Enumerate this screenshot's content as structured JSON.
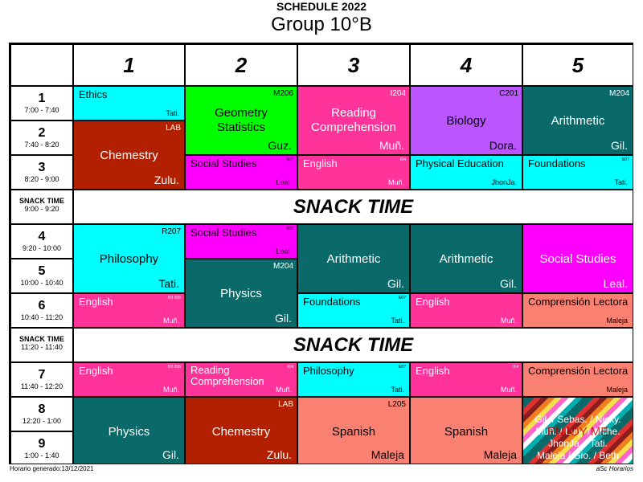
{
  "header": {
    "title": "SCHEDULE 2022",
    "subtitle": "Group 10°B"
  },
  "days": [
    "1",
    "2",
    "3",
    "4",
    "5"
  ],
  "periods": {
    "p1": {
      "num": "1",
      "time": "7:00 - 7:40"
    },
    "p2": {
      "num": "2",
      "time": "7:40 - 8:20"
    },
    "p3": {
      "num": "3",
      "time": "8:20 - 9:00"
    },
    "s1": {
      "label": "SNACK TIME",
      "time": "9:00 - 9:20"
    },
    "p4": {
      "num": "4",
      "time": "9:20 - 10:00"
    },
    "p5": {
      "num": "5",
      "time": "10:00 - 10:40"
    },
    "p6": {
      "num": "6",
      "time": "10:40 - 11:20"
    },
    "s2": {
      "label": "SNACK TIME",
      "time": "11:20 - 11:40"
    },
    "p7": {
      "num": "7",
      "time": "11:40 - 12:20"
    },
    "p8": {
      "num": "8",
      "time": "12:20 - 1:00"
    },
    "p9": {
      "num": "9",
      "time": "1:00 - 1:40"
    }
  },
  "snack_banner": "SNACK TIME",
  "lessons": {
    "d1_ethics": {
      "subject": "Ethics",
      "teacher": "Tati.",
      "color": "#00ffff"
    },
    "d1_chem": {
      "subject": "Chemestry",
      "room": "LAB",
      "teacher": "Zulu.",
      "color": "#b22000"
    },
    "d1_philo": {
      "subject": "Philosophy",
      "room": "R207",
      "teacher": "Tati.",
      "color": "#00ffff"
    },
    "d1_english6": {
      "subject": "English",
      "room": "R3 206",
      "teacher": "Muñ.",
      "color": "#ff3399"
    },
    "d1_english7": {
      "subject": "English",
      "room": "R3 206",
      "teacher": "Muñ.",
      "color": "#ff3399"
    },
    "d1_physics": {
      "subject": "Physics",
      "teacher": "Gil.",
      "color": "#0a6a6a"
    },
    "d2_geo": {
      "subject1": "Geometry",
      "subject2": "Statistics",
      "room": "M206",
      "teacher": "Guz.",
      "color": "#00ff00"
    },
    "d2_social3": {
      "subject": "Social Studies",
      "room": "S07",
      "teacher": "Leal.",
      "color": "#ff00ff"
    },
    "d2_social4": {
      "subject": "Social Studies",
      "room": "S02",
      "teacher": "Leal.",
      "color": "#ff00ff"
    },
    "d2_physics": {
      "subject": "Physics",
      "room": "M204",
      "teacher": "Gil.",
      "color": "#0a6a6a"
    },
    "d2_reading7": {
      "subject1": "Reading",
      "subject2": "Comprehension",
      "room": "I04",
      "teacher": "Muñ.",
      "color": "#ff3399"
    },
    "d2_chem": {
      "subject": "Chemestry",
      "room": "LAB",
      "teacher": "Zulu.",
      "color": "#b22000"
    },
    "d3_reading": {
      "subject1": "Reading",
      "subject2": "Comprehension",
      "room": "I204",
      "teacher": "Muñ.",
      "color": "#ff3399"
    },
    "d3_english3": {
      "subject": "English",
      "room": "I04",
      "teacher": "Muñ.",
      "color": "#ff3399"
    },
    "d3_arith": {
      "subject": "Arithmetic",
      "teacher": "Gil.",
      "color": "#0a6a6a"
    },
    "d3_found": {
      "subject": "Foundations",
      "room": "E07",
      "teacher": "Tati.",
      "color": "#00ffff"
    },
    "d3_philo7": {
      "subject": "Philosophy",
      "room": "E07",
      "teacher": "Tati.",
      "color": "#00ffff"
    },
    "d3_spanish": {
      "subject": "Spanish",
      "room": "L205",
      "teacher": "Maleja",
      "color": "#fa8072"
    },
    "d4_bio": {
      "subject": "Biology",
      "room": "C201",
      "teacher": "Dora.",
      "color": "#bb55ff"
    },
    "d4_pe": {
      "subject": "Physical Education",
      "teacher": "JhonJa.",
      "color": "#00ffff"
    },
    "d4_arith": {
      "subject": "Arithmetic",
      "teacher": "Gil.",
      "color": "#0a6a6a"
    },
    "d4_english6": {
      "subject": "English",
      "teacher": "Muñ.",
      "color": "#ff3399"
    },
    "d4_english7": {
      "subject": "English",
      "room": "I14",
      "teacher": "Muñ.",
      "color": "#ff3399"
    },
    "d4_spanish": {
      "subject": "Spanish",
      "teacher": "Maleja",
      "color": "#fa8072"
    },
    "d5_arith": {
      "subject": "Arithmetic",
      "room": "M204",
      "teacher": "Gil.",
      "color": "#0a6a6a"
    },
    "d5_found": {
      "subject": "Foundations",
      "room": "E07",
      "teacher": "Tati.",
      "color": "#00ffff"
    },
    "d5_social": {
      "subject": "Social Studies",
      "teacher": "Leal.",
      "color": "#ff00ff"
    },
    "d5_comp6": {
      "subject": "Comprensión Lectora",
      "teacher": "Maleja",
      "color": "#fa8072"
    },
    "d5_comp7": {
      "subject": "Comprensión Lectora",
      "teacher": "Maleja",
      "color": "#fa8072"
    },
    "d5_enjoy": {
      "line1": "Gil. / Sebas. / Nicky.",
      "line2": "Muñ. / Luly. / Arche.",
      "line3": "JhonJa. / Tati.",
      "line4": "Maleja / Gio. / Beth",
      "overlay": "ENJOY ME"
    }
  },
  "footer": {
    "left": "Horario generado:13/12/2021",
    "right": "aSc Horarios"
  }
}
